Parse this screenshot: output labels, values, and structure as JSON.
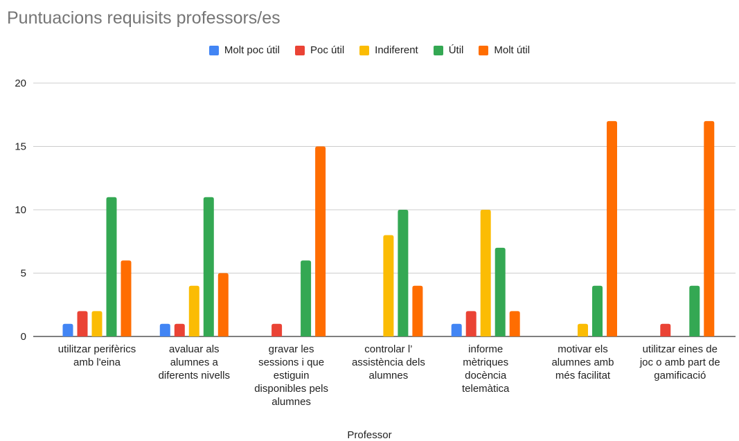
{
  "chart_data": {
    "type": "bar",
    "title": "Puntuacions requisits professors/es",
    "xlabel": "Professor",
    "ylabel": "",
    "ylim": [
      0,
      20
    ],
    "yticks": [
      0,
      5,
      10,
      15,
      20
    ],
    "grid": true,
    "legend_position": "top",
    "categories": [
      [
        "utilitzar perifèrics",
        "amb l'eina"
      ],
      [
        "avaluar als",
        "alumnes a",
        "diferents nivells"
      ],
      [
        "gravar les",
        "sessions i que",
        "estiguin",
        "disponibles pels",
        "alumnes"
      ],
      [
        "controlar l’",
        "assistència dels",
        "alumnes"
      ],
      [
        "informe",
        "mètriques",
        "docència",
        "telemàtica"
      ],
      [
        "motivar els",
        "alumnes amb",
        "més facilitat"
      ],
      [
        "utilitzar eines de",
        "joc o amb part de",
        "gamificació"
      ]
    ],
    "series": [
      {
        "name": "Molt poc útil",
        "color": "#4285f4",
        "values": [
          1,
          1,
          0,
          0,
          1,
          0,
          0
        ]
      },
      {
        "name": "Poc útil",
        "color": "#ea4335",
        "values": [
          2,
          1,
          1,
          0,
          2,
          0,
          1
        ]
      },
      {
        "name": "Indiferent",
        "color": "#fbbc04",
        "values": [
          2,
          4,
          0,
          8,
          10,
          1,
          0
        ]
      },
      {
        "name": "Útil",
        "color": "#34a853",
        "values": [
          11,
          11,
          6,
          10,
          7,
          4,
          4
        ]
      },
      {
        "name": "Molt útil",
        "color": "#ff6d01",
        "values": [
          6,
          5,
          15,
          4,
          2,
          17,
          17
        ]
      }
    ]
  }
}
